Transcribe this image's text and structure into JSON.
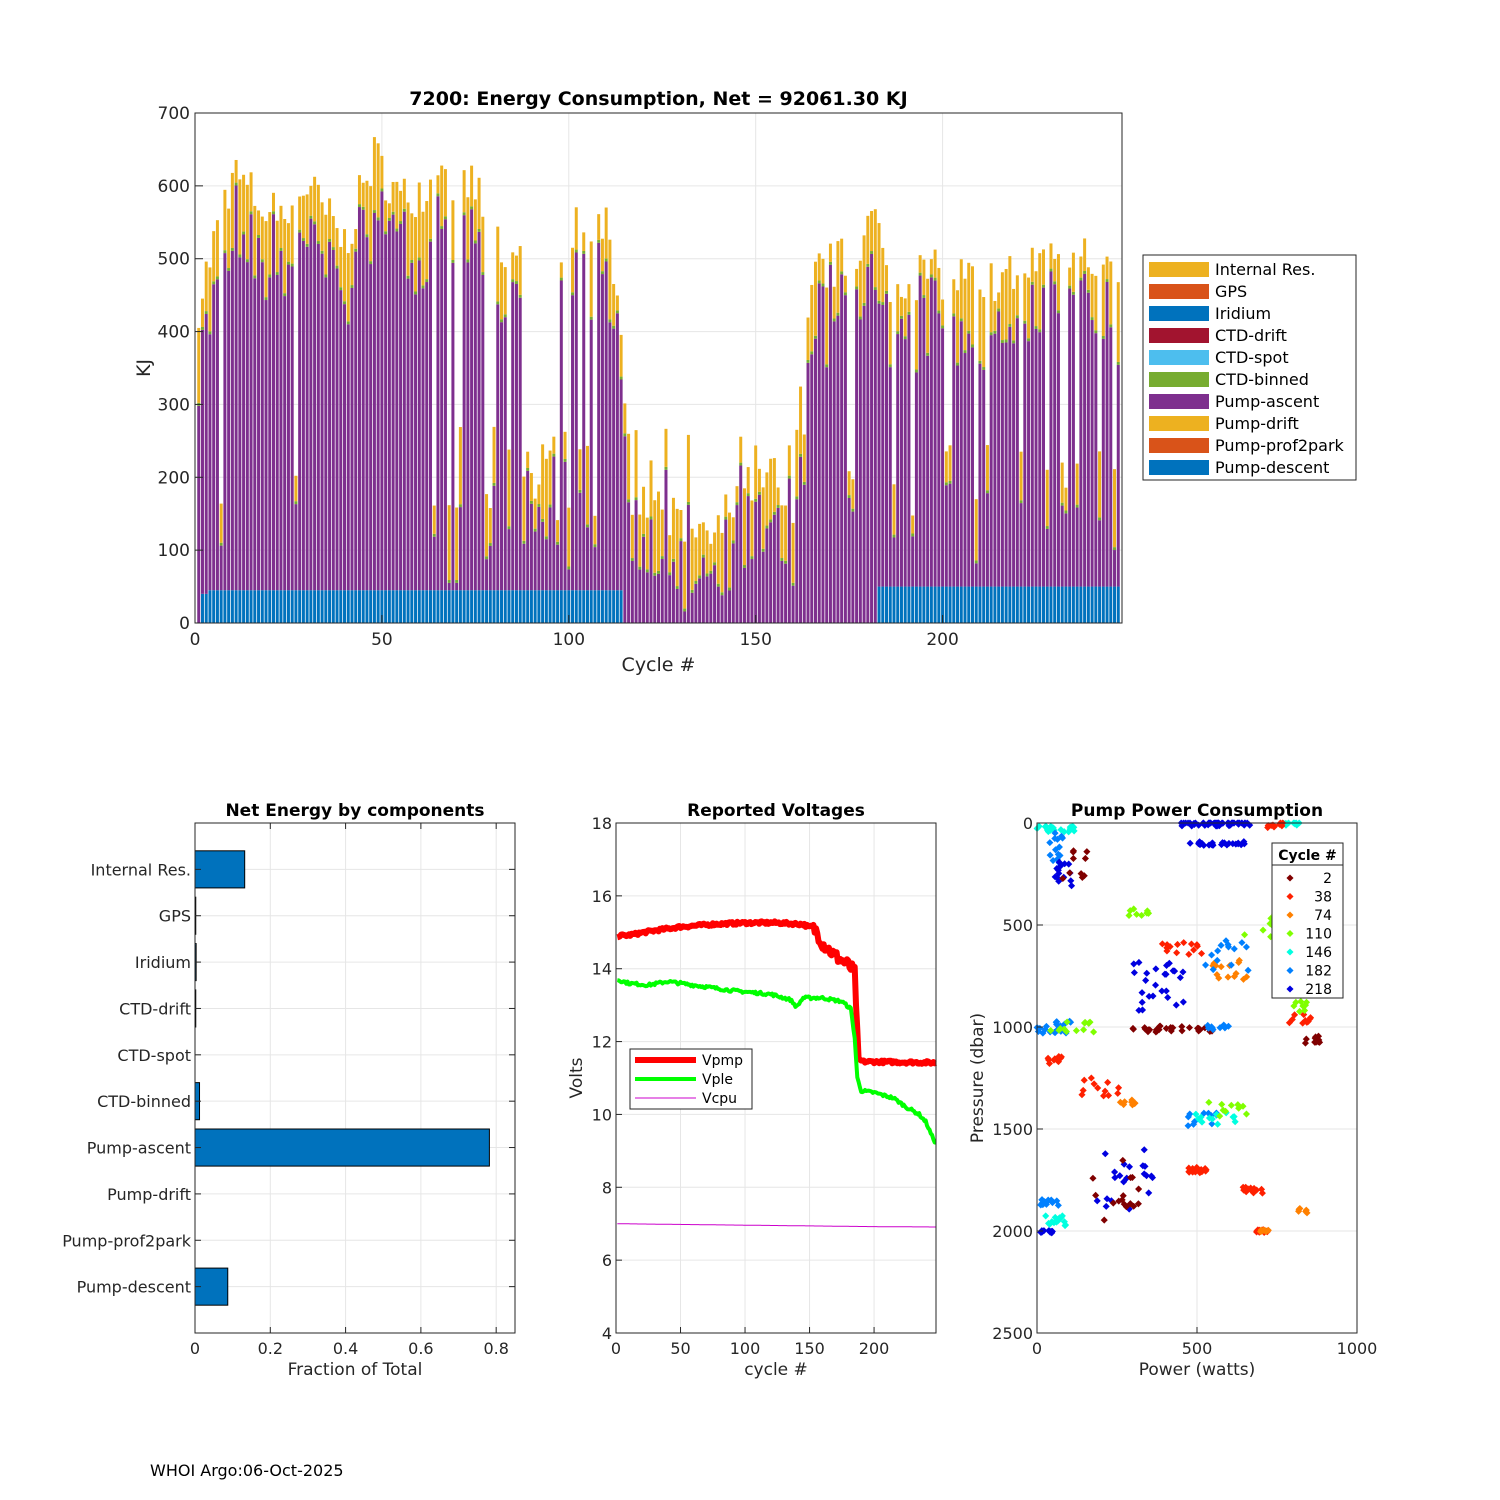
{
  "footer": "WHOI Argo:06-Oct-2025",
  "colors": {
    "internal": "#EDB120",
    "gps": "#D95319",
    "iridium": "#0072BD",
    "ctd_drift": "#A2142F",
    "ctd_spot": "#4DBEEE",
    "ctd_binned": "#77AC30",
    "pump_ascent": "#7E2F8E",
    "pump_drift": "#EDB120",
    "pump_prof2park": "#D95319",
    "pump_descent": "#0072BD",
    "vpmp": "#FF0000",
    "vple": "#00FF00",
    "vcpu": "#CC00CC"
  },
  "chart_data": [
    {
      "type": "bar",
      "stacked": true,
      "title": "7200: Energy Consumption,  Net = 92061.30 KJ",
      "xlabel": "Cycle #",
      "ylabel": "KJ",
      "xlim": [
        0,
        248
      ],
      "ylim": [
        0,
        700
      ],
      "xticks": [
        0,
        50,
        100,
        150,
        200
      ],
      "yticks": [
        0,
        100,
        200,
        300,
        400,
        500,
        600,
        700
      ],
      "grid": true,
      "legend_position": "right",
      "legend": [
        "Internal Res.",
        "GPS",
        "Iridium",
        "CTD-drift",
        "CTD-spot",
        "CTD-binned",
        "Pump-ascent",
        "Pump-drift",
        "Pump-prof2park",
        "Pump-descent"
      ],
      "cycles": 248,
      "pump_descent_levels": [
        [
          1,
          0
        ],
        [
          3,
          40
        ],
        [
          114,
          45
        ],
        [
          182,
          0
        ],
        [
          248,
          50
        ]
      ],
      "total_keypoints": [
        [
          1,
          440
        ],
        [
          10,
          620
        ],
        [
          20,
          560
        ],
        [
          30,
          600
        ],
        [
          40,
          520
        ],
        [
          48,
          640
        ],
        [
          55,
          580
        ],
        [
          65,
          610
        ],
        [
          75,
          600
        ],
        [
          80,
          520
        ],
        [
          90,
          500
        ],
        [
          100,
          530
        ],
        [
          110,
          560
        ],
        [
          114,
          430
        ],
        [
          117,
          130
        ],
        [
          125,
          160
        ],
        [
          135,
          110
        ],
        [
          140,
          120
        ],
        [
          146,
          210
        ],
        [
          150,
          190
        ],
        [
          160,
          230
        ],
        [
          166,
          480
        ],
        [
          175,
          500
        ],
        [
          182,
          560
        ],
        [
          185,
          470
        ],
        [
          195,
          480
        ],
        [
          210,
          470
        ],
        [
          220,
          480
        ],
        [
          230,
          520
        ],
        [
          240,
          500
        ],
        [
          248,
          480
        ]
      ],
      "dip_cycles": [
        7,
        27,
        64,
        68,
        70,
        71,
        78,
        79,
        80,
        84,
        88,
        89,
        90,
        91,
        92,
        93,
        94,
        95,
        96,
        97,
        99,
        100,
        103,
        105,
        107,
        118,
        120,
        122,
        126,
        132,
        146,
        150,
        153,
        157,
        158,
        159,
        160,
        163,
        175,
        176,
        187,
        192,
        201,
        202,
        209,
        212,
        221,
        228,
        232,
        233,
        236,
        242,
        246
      ]
    },
    {
      "type": "barh",
      "title": "Net Energy by components",
      "xlabel": "Fraction of Total",
      "xlim": [
        0,
        0.85
      ],
      "xticks": [
        0,
        0.2,
        0.4,
        0.6,
        0.8
      ],
      "xtick_labels": [
        "0",
        "0.2",
        "0.4",
        "0.6",
        "0.8"
      ],
      "grid": true,
      "categories": [
        "Internal Res.",
        "GPS",
        "Iridium",
        "CTD-drift",
        "CTD-spot",
        "CTD-binned",
        "Pump-ascent",
        "Pump-drift",
        "Pump-prof2park",
        "Pump-descent"
      ],
      "values": [
        0.132,
        0.002,
        0.003,
        0.002,
        0.0,
        0.012,
        0.782,
        0.0,
        0.0,
        0.087
      ]
    },
    {
      "type": "line",
      "title": "Reported Voltages",
      "xlabel": "cycle #",
      "ylabel": "Volts",
      "xlim": [
        0,
        248
      ],
      "ylim": [
        4,
        18
      ],
      "xticks": [
        0,
        50,
        100,
        150,
        200
      ],
      "yticks": [
        4,
        6,
        8,
        10,
        12,
        14,
        16,
        18
      ],
      "grid": true,
      "legend_position": "left",
      "series": [
        {
          "name": "Vpmp",
          "x": [
            1,
            10,
            25,
            50,
            75,
            100,
            125,
            145,
            155,
            160,
            170,
            180,
            185,
            188,
            192,
            210,
            230,
            245,
            248
          ],
          "y": [
            14.9,
            14.92,
            15.02,
            15.15,
            15.22,
            15.26,
            15.26,
            15.22,
            15.05,
            14.7,
            14.35,
            14.1,
            13.9,
            11.5,
            11.45,
            11.44,
            11.43,
            11.42,
            11.42
          ]
        },
        {
          "name": "Vple",
          "x": [
            1,
            10,
            25,
            40,
            60,
            90,
            120,
            135,
            140,
            145,
            160,
            175,
            182,
            185,
            187,
            190,
            200,
            215,
            225,
            235,
            240,
            245,
            248
          ],
          "y": [
            13.7,
            13.6,
            13.55,
            13.65,
            13.55,
            13.4,
            13.3,
            13.15,
            12.95,
            13.2,
            13.2,
            13.1,
            12.9,
            12.1,
            11.0,
            10.65,
            10.6,
            10.45,
            10.2,
            10.0,
            9.8,
            9.4,
            9.2
          ]
        },
        {
          "name": "Vcpu",
          "x": [
            1,
            50,
            100,
            150,
            200,
            248
          ],
          "y": [
            7.0,
            6.98,
            6.96,
            6.94,
            6.92,
            6.91
          ]
        }
      ]
    },
    {
      "type": "scatter",
      "title": "Pump Power Consumption",
      "xlabel": "Power (watts)",
      "ylabel": "Pressure (dbar)",
      "xlim": [
        0,
        1000
      ],
      "ylim": [
        0,
        2500
      ],
      "y_reversed": true,
      "xticks": [
        0,
        500,
        1000
      ],
      "yticks": [
        0,
        500,
        1000,
        1500,
        2000,
        2500
      ],
      "grid": true,
      "legend_title": "Cycle #",
      "legend_position": "top-right",
      "cycle_groups": [
        {
          "cycle": 2,
          "color": "#800000"
        },
        {
          "cycle": 38,
          "color": "#FF2000"
        },
        {
          "cycle": 74,
          "color": "#FF8000"
        },
        {
          "cycle": 110,
          "color": "#80FF00"
        },
        {
          "cycle": 146,
          "color": "#00FFE0"
        },
        {
          "cycle": 182,
          "color": "#0080FF"
        },
        {
          "cycle": 218,
          "color": "#0000E0"
        }
      ],
      "clusters": [
        {
          "group": 6,
          "p": [
            560,
            0
          ],
          "dp": [
            220,
            30
          ],
          "n": 60
        },
        {
          "group": 6,
          "p": [
            560,
            100
          ],
          "dp": [
            180,
            20
          ],
          "n": 25
        },
        {
          "group": 4,
          "p": [
            800,
            0
          ],
          "dp": [
            60,
            30
          ],
          "n": 10
        },
        {
          "group": 1,
          "p": [
            740,
            10
          ],
          "dp": [
            60,
            30
          ],
          "n": 10
        },
        {
          "group": 3,
          "p": [
            320,
            430
          ],
          "dp": [
            80,
            60
          ],
          "n": 8
        },
        {
          "group": 4,
          "p": [
            60,
            30
          ],
          "dp": [
            120,
            30
          ],
          "n": 20
        },
        {
          "group": 5,
          "p": [
            60,
            120
          ],
          "dp": [
            40,
            150
          ],
          "n": 14
        },
        {
          "group": 6,
          "p": [
            80,
            250
          ],
          "dp": [
            60,
            120
          ],
          "n": 14
        },
        {
          "group": 0,
          "p": [
            120,
            200
          ],
          "dp": [
            80,
            150
          ],
          "n": 10
        },
        {
          "group": 6,
          "p": [
            380,
            800
          ],
          "dp": [
            160,
            250
          ],
          "n": 26
        },
        {
          "group": 1,
          "p": [
            450,
            620
          ],
          "dp": [
            150,
            80
          ],
          "n": 14
        },
        {
          "group": 2,
          "p": [
            600,
            720
          ],
          "dp": [
            120,
            100
          ],
          "n": 14
        },
        {
          "group": 5,
          "p": [
            600,
            650
          ],
          "dp": [
            150,
            150
          ],
          "n": 14
        },
        {
          "group": 3,
          "p": [
            700,
            500
          ],
          "dp": [
            150,
            120
          ],
          "n": 10
        },
        {
          "group": 0,
          "p": [
            420,
            1010
          ],
          "dp": [
            260,
            30
          ],
          "n": 28
        },
        {
          "group": 5,
          "p": [
            560,
            1000
          ],
          "dp": [
            80,
            30
          ],
          "n": 10
        },
        {
          "group": 1,
          "p": [
            820,
            960
          ],
          "dp": [
            80,
            60
          ],
          "n": 10
        },
        {
          "group": 3,
          "p": [
            820,
            900
          ],
          "dp": [
            60,
            60
          ],
          "n": 8
        },
        {
          "group": 0,
          "p": [
            860,
            1060
          ],
          "dp": [
            50,
            40
          ],
          "n": 10
        },
        {
          "group": 5,
          "p": [
            60,
            1000
          ],
          "dp": [
            120,
            60
          ],
          "n": 22
        },
        {
          "group": 3,
          "p": [
            100,
            1000
          ],
          "dp": [
            160,
            50
          ],
          "n": 14
        },
        {
          "group": 1,
          "p": [
            60,
            1160
          ],
          "dp": [
            60,
            40
          ],
          "n": 10
        },
        {
          "group": 2,
          "p": [
            280,
            1370
          ],
          "dp": [
            60,
            30
          ],
          "n": 8
        },
        {
          "group": 1,
          "p": [
            200,
            1300
          ],
          "dp": [
            120,
            100
          ],
          "n": 12
        },
        {
          "group": 6,
          "p": [
            280,
            1750
          ],
          "dp": [
            200,
            300
          ],
          "n": 22
        },
        {
          "group": 0,
          "p": [
            250,
            1800
          ],
          "dp": [
            160,
            300
          ],
          "n": 16
        },
        {
          "group": 5,
          "p": [
            520,
            1450
          ],
          "dp": [
            100,
            80
          ],
          "n": 12
        },
        {
          "group": 4,
          "p": [
            560,
            1450
          ],
          "dp": [
            150,
            60
          ],
          "n": 12
        },
        {
          "group": 3,
          "p": [
            600,
            1400
          ],
          "dp": [
            140,
            100
          ],
          "n": 10
        },
        {
          "group": 1,
          "p": [
            500,
            1700
          ],
          "dp": [
            60,
            30
          ],
          "n": 14
        },
        {
          "group": 1,
          "p": [
            680,
            1800
          ],
          "dp": [
            80,
            30
          ],
          "n": 16
        },
        {
          "group": 2,
          "p": [
            830,
            1900
          ],
          "dp": [
            30,
            30
          ],
          "n": 6
        },
        {
          "group": 5,
          "p": [
            40,
            1860
          ],
          "dp": [
            60,
            30
          ],
          "n": 14
        },
        {
          "group": 4,
          "p": [
            60,
            1950
          ],
          "dp": [
            80,
            50
          ],
          "n": 14
        },
        {
          "group": 6,
          "p": [
            30,
            2000
          ],
          "dp": [
            40,
            20
          ],
          "n": 10
        },
        {
          "group": 1,
          "p": [
            700,
            2000
          ],
          "dp": [
            40,
            15
          ],
          "n": 12
        },
        {
          "group": 2,
          "p": [
            710,
            2000
          ],
          "dp": [
            30,
            10
          ],
          "n": 8
        }
      ]
    }
  ]
}
